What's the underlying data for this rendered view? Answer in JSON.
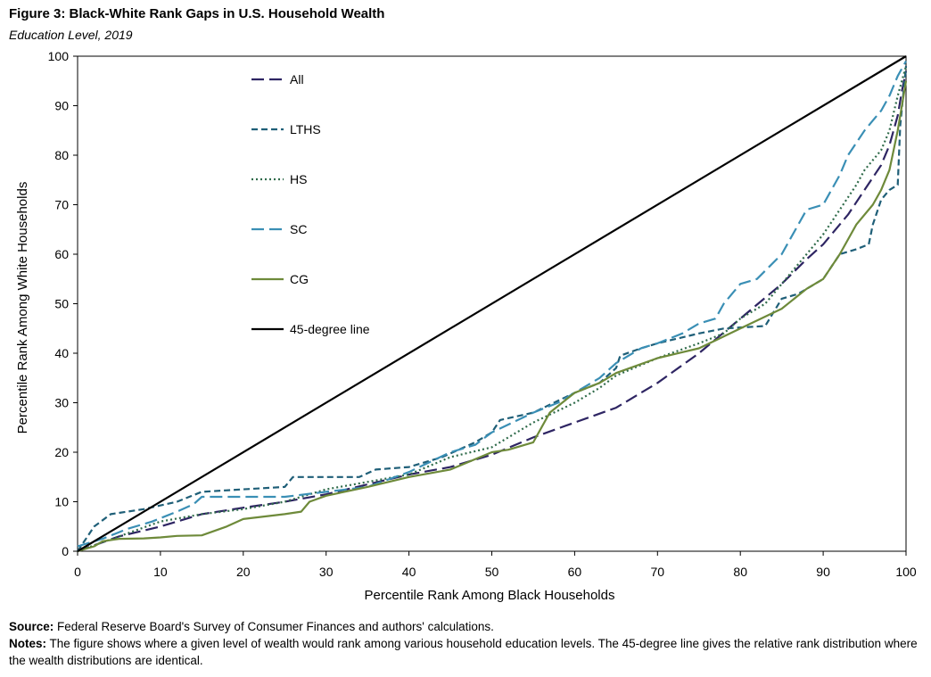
{
  "title": "Figure 3: Black-White Rank Gaps in U.S. Household Wealth",
  "subtitle": "Education Level, 2019",
  "source_label": "Source:",
  "source_text": " Federal Reserve Board's Survey of Consumer Finances and authors' calculations.",
  "notes_label": "Notes:",
  "notes_text": " The figure shows where a given level of wealth would rank among various household education levels. The 45-degree line gives the relative rank distribution where the wealth distributions are identical.",
  "chart_data": {
    "type": "line",
    "xlabel": "Percentile Rank Among  Black Households",
    "ylabel": "Percentile Rank Among  White Households",
    "xlim": [
      0,
      100
    ],
    "ylim": [
      0,
      100
    ],
    "xticks": [
      0,
      10,
      20,
      30,
      40,
      50,
      60,
      70,
      80,
      90,
      100
    ],
    "yticks": [
      0,
      10,
      20,
      30,
      40,
      50,
      60,
      70,
      80,
      90,
      100
    ],
    "grid": false,
    "legend_position": "top-left inside",
    "series": [
      {
        "name": "All",
        "color": "#2e2563",
        "dash": "14,6",
        "points": [
          [
            0,
            0
          ],
          [
            5,
            3
          ],
          [
            10,
            5
          ],
          [
            15,
            7.5
          ],
          [
            20,
            8.8
          ],
          [
            25,
            10
          ],
          [
            30,
            11.5
          ],
          [
            35,
            13.5
          ],
          [
            40,
            15.5
          ],
          [
            45,
            17
          ],
          [
            50,
            19.5
          ],
          [
            55,
            23
          ],
          [
            60,
            26
          ],
          [
            65,
            29
          ],
          [
            70,
            34
          ],
          [
            75,
            40
          ],
          [
            80,
            47
          ],
          [
            85,
            54
          ],
          [
            88,
            59
          ],
          [
            90,
            62
          ],
          [
            93,
            68
          ],
          [
            95,
            73
          ],
          [
            97,
            78
          ],
          [
            98,
            82
          ],
          [
            99,
            88
          ],
          [
            99.5,
            93
          ],
          [
            100,
            97
          ]
        ]
      },
      {
        "name": "LTHS",
        "color": "#1f5f78",
        "dash": "7,4",
        "points": [
          [
            0,
            0
          ],
          [
            2,
            5
          ],
          [
            4,
            7.5
          ],
          [
            8,
            8.5
          ],
          [
            12,
            10
          ],
          [
            15,
            12
          ],
          [
            20,
            12.5
          ],
          [
            25,
            13
          ],
          [
            26,
            15
          ],
          [
            30,
            15
          ],
          [
            34,
            15
          ],
          [
            36,
            16.5
          ],
          [
            40,
            17
          ],
          [
            44,
            19
          ],
          [
            48,
            22
          ],
          [
            50,
            24
          ],
          [
            51,
            26.5
          ],
          [
            55,
            28
          ],
          [
            60,
            32
          ],
          [
            63,
            34
          ],
          [
            65,
            37
          ],
          [
            65.5,
            39.5
          ],
          [
            68,
            41
          ],
          [
            70,
            42
          ],
          [
            75,
            44
          ],
          [
            78,
            45
          ],
          [
            83,
            45.5
          ],
          [
            85,
            51
          ],
          [
            87,
            52
          ],
          [
            90,
            55
          ],
          [
            92,
            60
          ],
          [
            94,
            61
          ],
          [
            95.5,
            62
          ],
          [
            96,
            66
          ],
          [
            97,
            71
          ],
          [
            98,
            73
          ],
          [
            99,
            74
          ],
          [
            99.3,
            86
          ],
          [
            100,
            98
          ]
        ]
      },
      {
        "name": "HS",
        "color": "#2f6b4a",
        "dash": "2,3",
        "points": [
          [
            0,
            0
          ],
          [
            5,
            3
          ],
          [
            10,
            6
          ],
          [
            15,
            7.5
          ],
          [
            20,
            8.5
          ],
          [
            25,
            10
          ],
          [
            30,
            12.5
          ],
          [
            35,
            14
          ],
          [
            40,
            15.5
          ],
          [
            45,
            19
          ],
          [
            50,
            21
          ],
          [
            55,
            26
          ],
          [
            60,
            30
          ],
          [
            63,
            33
          ],
          [
            65,
            35.5
          ],
          [
            70,
            39
          ],
          [
            75,
            42
          ],
          [
            78,
            44
          ],
          [
            80,
            47
          ],
          [
            83,
            50
          ],
          [
            85,
            54
          ],
          [
            88,
            60
          ],
          [
            90,
            64
          ],
          [
            92,
            69
          ],
          [
            94,
            74
          ],
          [
            95,
            77
          ],
          [
            96,
            79
          ],
          [
            97,
            81
          ],
          [
            98,
            85
          ],
          [
            99,
            92
          ],
          [
            100,
            98
          ]
        ]
      },
      {
        "name": "SC",
        "color": "#3a8fb5",
        "dash": "14,6",
        "points": [
          [
            0,
            1
          ],
          [
            3,
            2.5
          ],
          [
            6,
            4.5
          ],
          [
            9,
            6
          ],
          [
            12,
            8
          ],
          [
            14,
            9.5
          ],
          [
            15,
            11
          ],
          [
            20,
            11
          ],
          [
            25,
            11
          ],
          [
            30,
            12
          ],
          [
            35,
            13
          ],
          [
            40,
            16
          ],
          [
            45,
            20
          ],
          [
            48,
            21.5
          ],
          [
            50,
            24
          ],
          [
            55,
            28
          ],
          [
            58,
            30
          ],
          [
            60,
            32
          ],
          [
            63,
            35
          ],
          [
            65,
            38
          ],
          [
            68,
            41
          ],
          [
            70,
            42
          ],
          [
            73,
            44
          ],
          [
            75,
            46
          ],
          [
            77,
            47
          ],
          [
            78,
            50
          ],
          [
            80,
            54
          ],
          [
            82,
            55
          ],
          [
            85,
            60
          ],
          [
            88,
            69
          ],
          [
            90,
            70
          ],
          [
            92,
            76
          ],
          [
            93,
            80
          ],
          [
            95,
            85
          ],
          [
            96,
            87
          ],
          [
            97,
            89
          ],
          [
            98,
            92
          ],
          [
            99,
            96
          ],
          [
            100,
            99
          ]
        ]
      },
      {
        "name": "CG",
        "color": "#6e8a3a",
        "dash": "",
        "points": [
          [
            0,
            0
          ],
          [
            2,
            1
          ],
          [
            3,
            2
          ],
          [
            5,
            2.5
          ],
          [
            8,
            2.6
          ],
          [
            10,
            2.8
          ],
          [
            12,
            3.1
          ],
          [
            15,
            3.2
          ],
          [
            18,
            5
          ],
          [
            20,
            6.5
          ],
          [
            25,
            7.5
          ],
          [
            27,
            8
          ],
          [
            28,
            10
          ],
          [
            30,
            11.2
          ],
          [
            35,
            13
          ],
          [
            40,
            15
          ],
          [
            45,
            16.5
          ],
          [
            50,
            20
          ],
          [
            52,
            20.5
          ],
          [
            55,
            22
          ],
          [
            56,
            25
          ],
          [
            57,
            28
          ],
          [
            60,
            32
          ],
          [
            63,
            34
          ],
          [
            65,
            36
          ],
          [
            70,
            39
          ],
          [
            75,
            41
          ],
          [
            80,
            45
          ],
          [
            85,
            49
          ],
          [
            88,
            53
          ],
          [
            90,
            55
          ],
          [
            92,
            60
          ],
          [
            94,
            66
          ],
          [
            96,
            70
          ],
          [
            97,
            73
          ],
          [
            98,
            77
          ],
          [
            99,
            85
          ],
          [
            100,
            95
          ]
        ]
      },
      {
        "name": "45-degree line",
        "color": "#000000",
        "dash": "",
        "points": [
          [
            0,
            0
          ],
          [
            100,
            100
          ]
        ]
      }
    ]
  }
}
